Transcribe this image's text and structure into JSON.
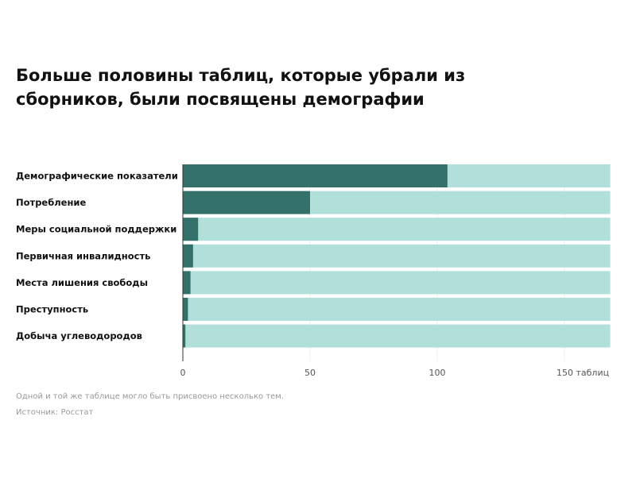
{
  "chart_data": {
    "type": "bar",
    "orientation": "horizontal",
    "title": "Больше половины таблиц, которые убрали из сборников, были посвящены демографии",
    "categories": [
      "Демографические показатели",
      "Потребление",
      "Меры социальной поддержки",
      "Первичная инвалидность",
      "Места лишения свободы",
      "Преступность",
      "Добыча углеводородов"
    ],
    "values": [
      104,
      50,
      6,
      4,
      3,
      2,
      1
    ],
    "background_total": 168,
    "xlim": [
      0,
      168
    ],
    "xticks": [
      0,
      50,
      100,
      150
    ],
    "xtick_labels": [
      "0",
      "50",
      "100",
      "150 таблиц"
    ],
    "grid": true,
    "colors": {
      "value": "#33706a",
      "background": "#b1e0da"
    }
  },
  "footnote": "Одной и той же таблице могло быть присвоено несколько тем.",
  "source": "Источник: Росстат"
}
